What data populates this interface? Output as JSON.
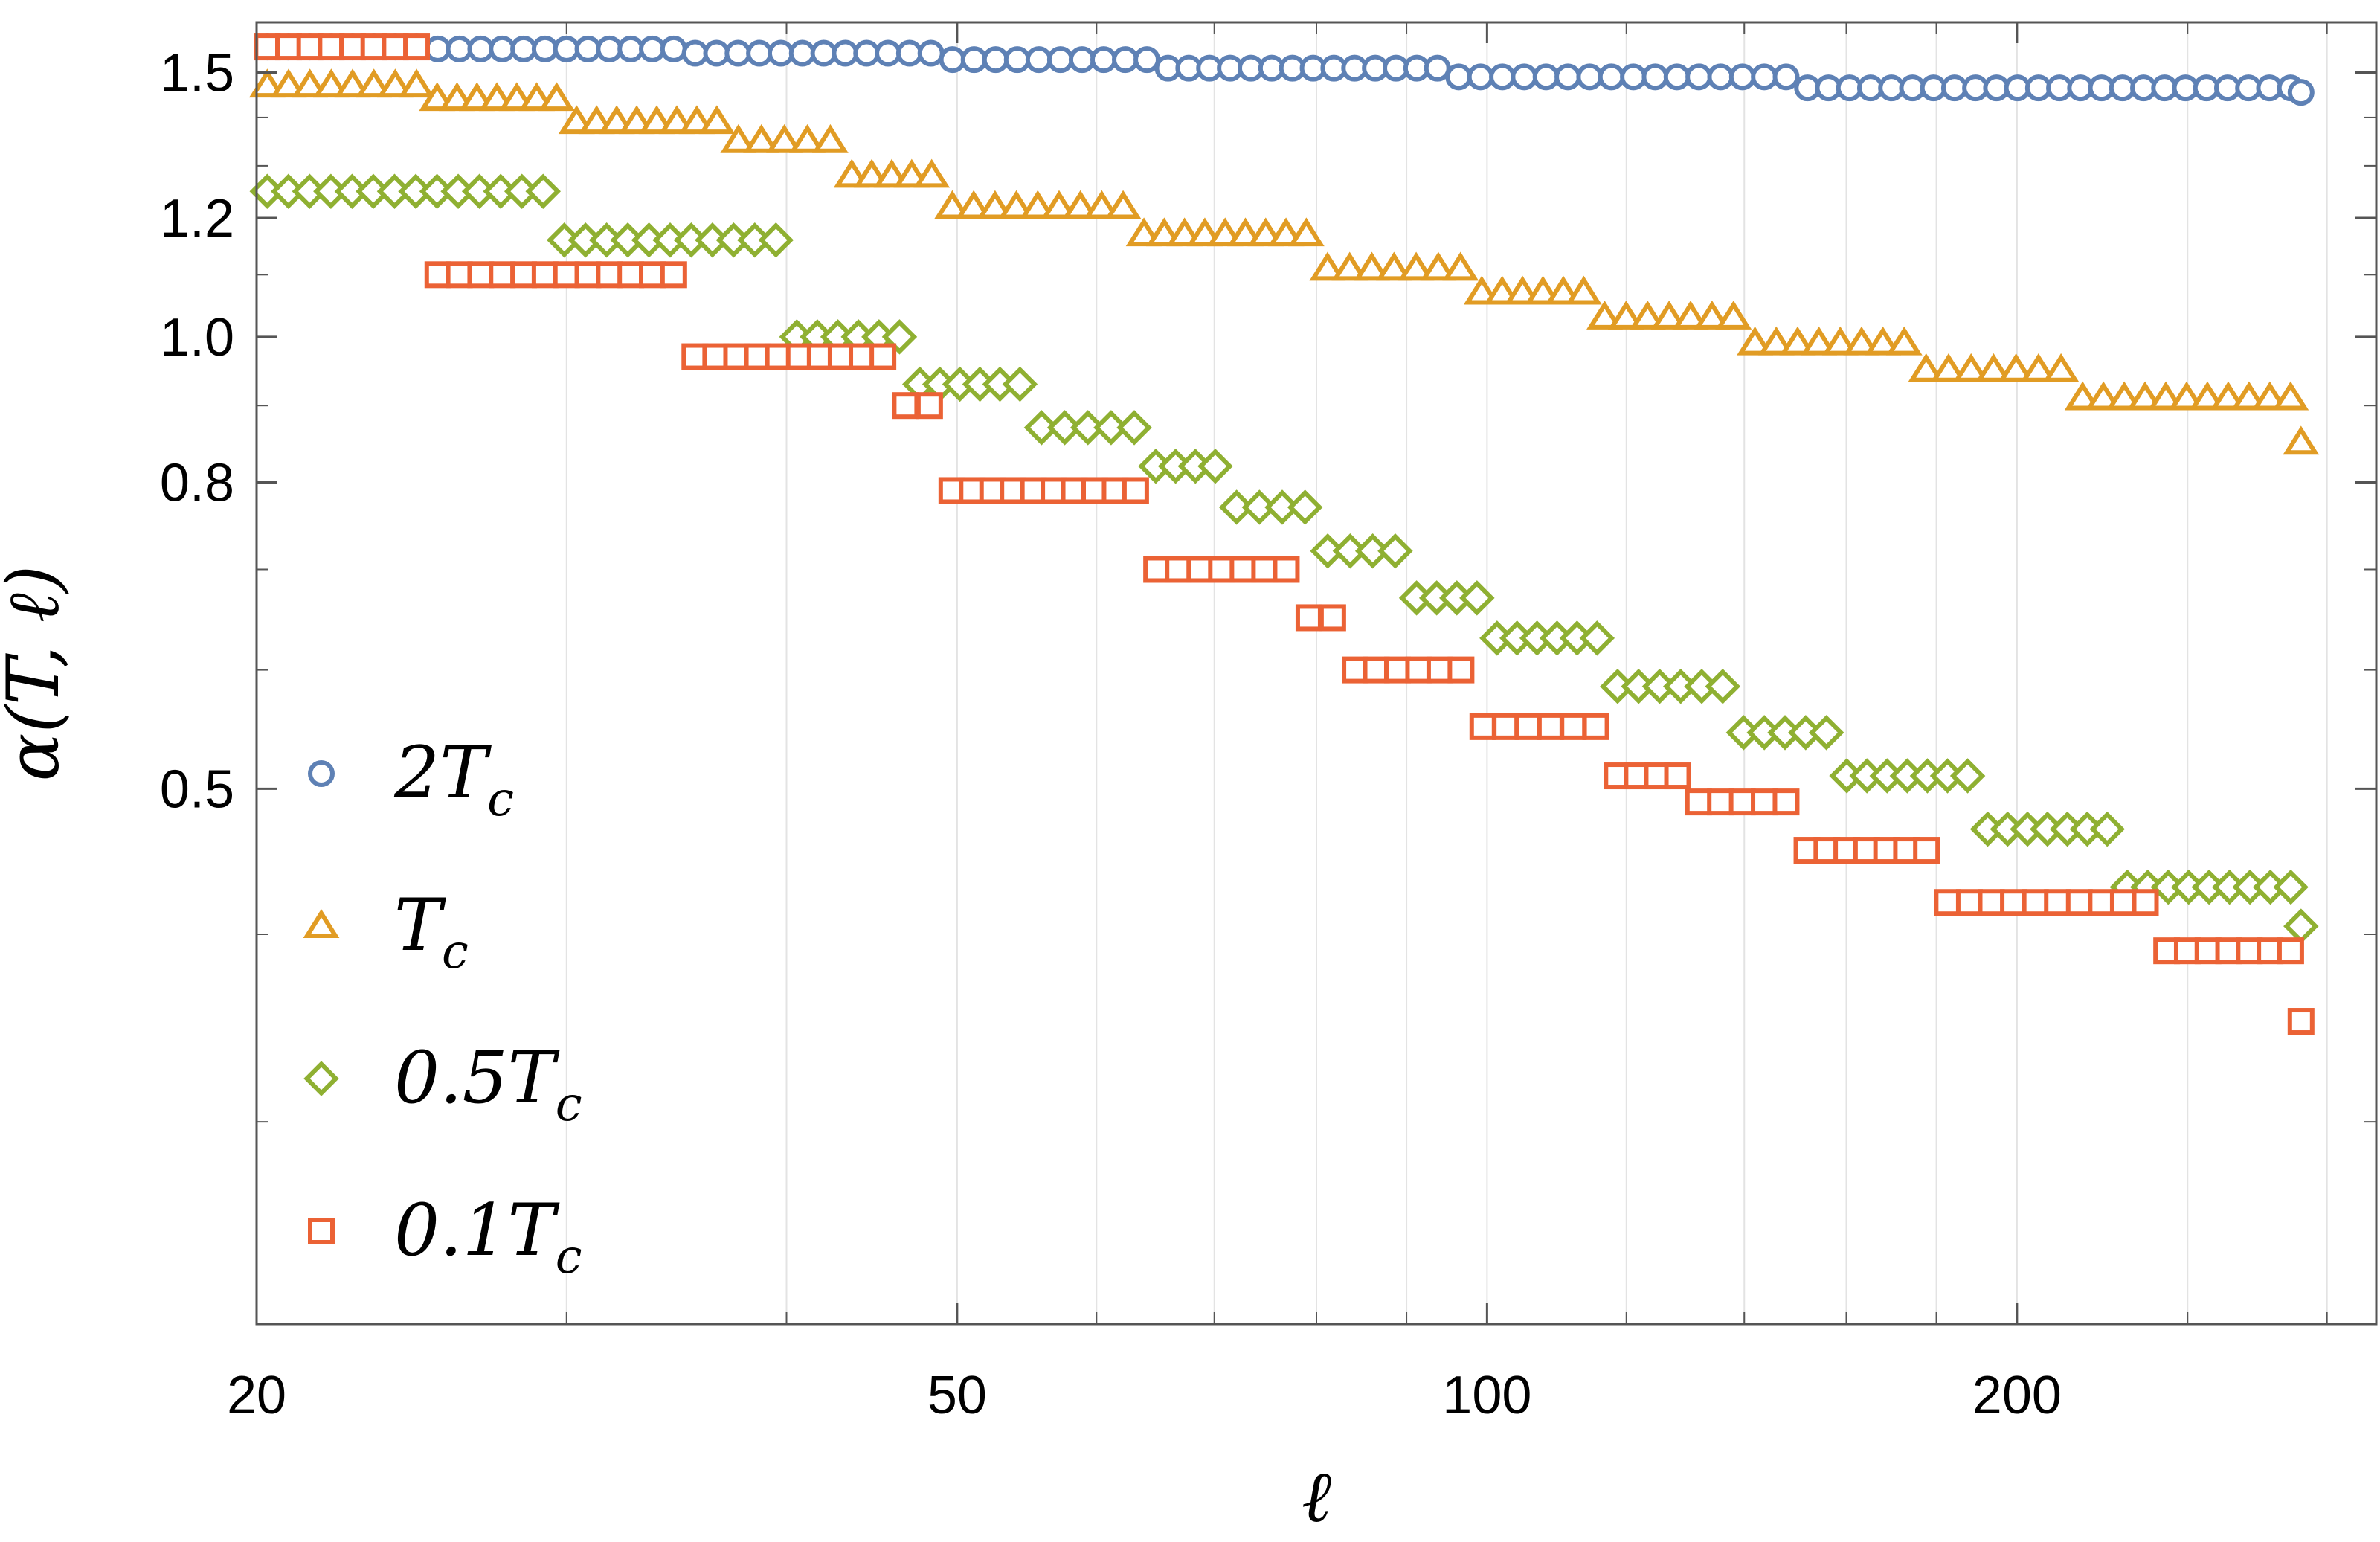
{
  "chart_data": {
    "type": "scatter",
    "title": "",
    "xlabel": "ℓ",
    "ylabel": "α(T, ℓ)",
    "xscale": "log",
    "yscale": "log",
    "xlim": [
      20,
      320
    ],
    "ylim": [
      0.22,
      1.62
    ],
    "xticks": [
      20,
      50,
      100,
      200
    ],
    "xtick_labels": [
      "20",
      "50",
      "100",
      "200"
    ],
    "x_minor_ticks": [
      30,
      40,
      60,
      70,
      80,
      90,
      120,
      140,
      160,
      180,
      250,
      300
    ],
    "yticks": [
      0.5,
      0.8,
      1.0,
      1.2,
      1.5
    ],
    "ytick_labels": [
      "0.5",
      "0.8",
      "1.0",
      "1.2",
      "1.5"
    ],
    "y_minor_ticks": [
      0.3,
      0.4,
      0.6,
      0.7,
      0.9,
      1.1,
      1.3,
      1.4
    ],
    "grid": "vertical",
    "legend_position": "bottom-left",
    "series": [
      {
        "name": "2T_c",
        "label_main": "2T",
        "label_sub": "c",
        "marker": "circle",
        "color": "#5e81b5",
        "steps": [
          [
            20,
            25,
            1.56
          ],
          [
            25,
            35,
            1.555
          ],
          [
            35,
            49,
            1.545
          ],
          [
            49,
            65,
            1.53
          ],
          [
            65,
            95,
            1.51
          ],
          [
            95,
            150,
            1.49
          ],
          [
            150,
            290,
            1.465
          ]
        ],
        "end_point": [
          290,
          1.455
        ]
      },
      {
        "name": "T_c",
        "label_main": "T",
        "label_sub": "c",
        "marker": "triangle",
        "color": "#e19c24",
        "steps": [
          [
            20,
            25,
            1.47
          ],
          [
            25,
            30,
            1.44
          ],
          [
            30,
            37,
            1.39
          ],
          [
            37,
            43,
            1.35
          ],
          [
            43,
            49,
            1.28
          ],
          [
            49,
            63,
            1.22
          ],
          [
            63,
            80,
            1.17
          ],
          [
            80,
            98,
            1.11
          ],
          [
            98,
            115,
            1.07
          ],
          [
            115,
            140,
            1.03
          ],
          [
            140,
            175,
            0.99
          ],
          [
            175,
            215,
            0.95
          ],
          [
            215,
            290,
            0.91
          ]
        ],
        "end_point": [
          290,
          0.85
        ]
      },
      {
        "name": "0.5T_c",
        "label_main": "0.5T",
        "label_sub": "c",
        "marker": "diamond",
        "color": "#8fb032",
        "steps": [
          [
            20,
            29.5,
            1.25
          ],
          [
            29.5,
            40,
            1.16
          ],
          [
            40,
            47,
            1.0
          ],
          [
            47,
            55,
            0.93
          ],
          [
            55,
            64,
            0.87
          ],
          [
            64,
            71,
            0.82
          ],
          [
            71,
            80,
            0.77
          ],
          [
            80,
            90,
            0.72
          ],
          [
            90,
            100,
            0.67
          ],
          [
            100,
            117,
            0.63
          ],
          [
            117,
            138,
            0.585
          ],
          [
            138,
            158,
            0.545
          ],
          [
            158,
            190,
            0.51
          ],
          [
            190,
            228,
            0.47
          ],
          [
            228,
            290,
            0.43
          ]
        ],
        "end_point": [
          290,
          0.405
        ]
      },
      {
        "name": "0.1T_c",
        "label_main": "0.1T",
        "label_sub": "c",
        "marker": "square",
        "color": "#eb6235",
        "steps": [
          [
            20,
            25,
            1.56
          ],
          [
            25,
            35,
            1.1
          ],
          [
            35,
            46,
            0.97
          ],
          [
            46,
            49,
            0.9
          ],
          [
            49,
            64,
            0.79
          ],
          [
            64,
            78,
            0.7
          ],
          [
            78,
            83,
            0.65
          ],
          [
            83,
            98,
            0.6
          ],
          [
            98,
            117,
            0.55
          ],
          [
            117,
            130,
            0.51
          ],
          [
            130,
            150,
            0.49
          ],
          [
            150,
            180,
            0.455
          ],
          [
            180,
            240,
            0.42
          ],
          [
            240,
            290,
            0.39
          ]
        ],
        "end_point": [
          290,
          0.35
        ]
      }
    ]
  }
}
